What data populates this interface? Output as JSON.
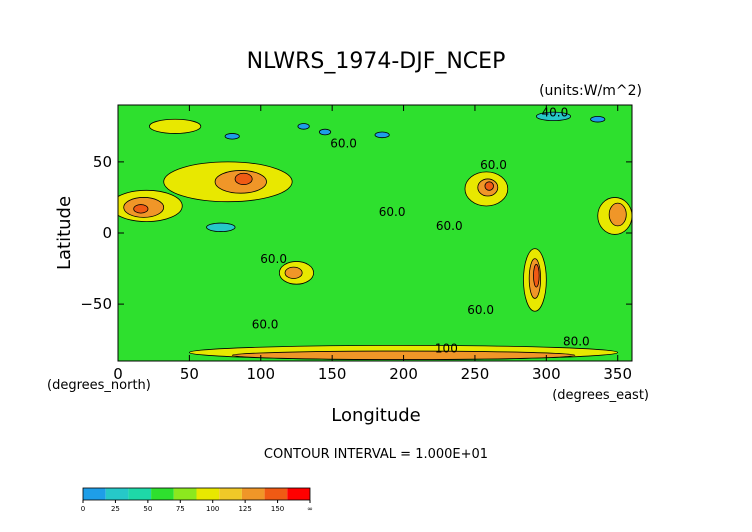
{
  "chart_data": {
    "type": "heatmap",
    "title": "NLWRS_1974-DJF_NCEP",
    "units_label": "(units:W/m^2)",
    "xlabel": "Longitude",
    "ylabel": "Latitude",
    "x_unit_label": "(degrees_east)",
    "y_unit_label": "(degrees_north)",
    "xlim": [
      0,
      360
    ],
    "ylim": [
      -90,
      90
    ],
    "x_ticks": [
      0,
      50,
      100,
      150,
      200,
      250,
      300,
      350
    ],
    "y_ticks": [
      -50,
      0,
      50
    ],
    "x_tick_labels": [
      "0",
      "50",
      "100",
      "150",
      "200",
      "250",
      "300",
      "350"
    ],
    "y_tick_labels": [
      "−50",
      "0",
      "50"
    ],
    "contour_interval_text": "CONTOUR INTERVAL = 1.000E+01",
    "contour_interval": 10,
    "contour_labels": [
      {
        "text": "60.0",
        "lon": 158,
        "lat": 60
      },
      {
        "text": "60.0",
        "lon": 263,
        "lat": 45
      },
      {
        "text": "60.0",
        "lon": 192,
        "lat": 12
      },
      {
        "text": "60.0",
        "lon": 232,
        "lat": 2
      },
      {
        "text": "60.0",
        "lon": 109,
        "lat": -21
      },
      {
        "text": "60.0",
        "lon": 254,
        "lat": -57
      },
      {
        "text": "60.0",
        "lon": 103,
        "lat": -67
      },
      {
        "text": "40.0",
        "lon": 306,
        "lat": 82
      },
      {
        "text": "80.0",
        "lon": 321,
        "lat": -79
      },
      {
        "text": "100",
        "lon": 230,
        "lat": -84
      }
    ],
    "colorbar": {
      "tick_labels": [
        "0",
        "25",
        "50",
        "75",
        "100",
        "125",
        "150",
        "∞"
      ],
      "colors": [
        "#1e9ee8",
        "#26c8c8",
        "#1ed8a8",
        "#2ee02e",
        "#8ce81e",
        "#e8e800",
        "#f0c828",
        "#f09628",
        "#f05a14",
        "#ff0000"
      ]
    },
    "regions": [
      {
        "level": "30-40",
        "lon": 305,
        "lat": 82,
        "rlon": 12,
        "rlat": 3
      },
      {
        "level": "30-40",
        "lon": 72,
        "lat": 4,
        "rlon": 10,
        "rlat": 3
      },
      {
        "level": "20-30",
        "lon": 80,
        "lat": 68,
        "rlon": 5,
        "rlat": 2
      },
      {
        "level": "20-30",
        "lon": 130,
        "lat": 75,
        "rlon": 4,
        "rlat": 2
      },
      {
        "level": "20-30",
        "lon": 145,
        "lat": 71,
        "rlon": 4,
        "rlat": 2
      },
      {
        "level": "20-30",
        "lon": 185,
        "lat": 69,
        "rlon": 5,
        "rlat": 2
      },
      {
        "level": "20-30",
        "lon": 336,
        "lat": 80,
        "rlon": 5,
        "rlat": 2
      },
      {
        "level": "90-110",
        "lon": 77,
        "lat": 36,
        "rlon": 45,
        "rlat": 14
      },
      {
        "level": "90-110",
        "lon": 20,
        "lat": 19,
        "rlon": 25,
        "rlat": 11
      },
      {
        "level": "90-110",
        "lon": 125,
        "lat": -28,
        "rlon": 12,
        "rlat": 8
      },
      {
        "level": "90-110",
        "lon": 292,
        "lat": -33,
        "rlon": 8,
        "rlat": 22
      },
      {
        "level": "90-110",
        "lon": 258,
        "lat": 31,
        "rlon": 15,
        "rlat": 12
      },
      {
        "level": "90-110",
        "lon": 348,
        "lat": 12,
        "rlon": 12,
        "rlat": 13
      },
      {
        "level": "90-110",
        "lon": 200,
        "lat": -84,
        "rlon": 150,
        "rlat": 5
      },
      {
        "level": "90-110",
        "lon": 40,
        "lat": 75,
        "rlon": 18,
        "rlat": 5
      },
      {
        "level": "110-130",
        "lon": 86,
        "lat": 36,
        "rlon": 18,
        "rlat": 8
      },
      {
        "level": "110-130",
        "lon": 18,
        "lat": 18,
        "rlon": 14,
        "rlat": 7
      },
      {
        "level": "110-130",
        "lon": 259,
        "lat": 32,
        "rlon": 7,
        "rlat": 6
      },
      {
        "level": "110-130",
        "lon": 292,
        "lat": -32,
        "rlon": 4,
        "rlat": 14
      },
      {
        "level": "110-130",
        "lon": 350,
        "lat": 13,
        "rlon": 6,
        "rlat": 8
      },
      {
        "level": "110-130",
        "lon": 123,
        "lat": -28,
        "rlon": 6,
        "rlat": 4
      },
      {
        "level": "110-130",
        "lon": 200,
        "lat": -86,
        "rlon": 120,
        "rlat": 3
      },
      {
        "level": "130-150",
        "lon": 88,
        "lat": 38,
        "rlon": 6,
        "rlat": 4
      },
      {
        "level": "130-150",
        "lon": 293,
        "lat": -30,
        "rlon": 2,
        "rlat": 8
      },
      {
        "level": "130-150",
        "lon": 260,
        "lat": 33,
        "rlon": 3,
        "rlat": 3
      },
      {
        "level": "130-150",
        "lon": 16,
        "lat": 17,
        "rlon": 5,
        "rlat": 3
      }
    ]
  }
}
